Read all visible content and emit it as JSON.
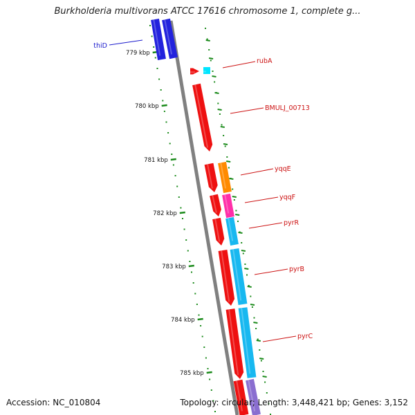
{
  "header": {
    "title": "Burkholderia multivorans ATCC 17616 chromosome 1, complete g..."
  },
  "footer": {
    "accession": "Accession: NC_010804",
    "stats": "Topology: circular; Length: 3,448,421 bp; Genes: 3,152"
  },
  "map": {
    "ticks": [
      "779 kbp",
      "780 kbp",
      "781 kbp",
      "782 kbp",
      "783 kbp",
      "784 kbp",
      "785 kbp"
    ],
    "colors": {
      "backbone": "#7f7f7f",
      "tick": "#1a8a1a",
      "reverse_strand": "#2222dd",
      "forward_strand": "#ee1111",
      "reverse_label": "#1a1acc",
      "forward_label": "#cc1111"
    },
    "genes": [
      {
        "name": "thiD",
        "strand": "reverse"
      },
      {
        "name": "rubA",
        "strand": "forward"
      },
      {
        "name": "BMULJ_00713",
        "strand": "forward"
      },
      {
        "name": "yqqE",
        "strand": "forward"
      },
      {
        "name": "yqqF",
        "strand": "forward"
      },
      {
        "name": "pyrR",
        "strand": "forward"
      },
      {
        "name": "pyrB",
        "strand": "forward"
      },
      {
        "name": "pyrC",
        "strand": "forward"
      }
    ]
  }
}
